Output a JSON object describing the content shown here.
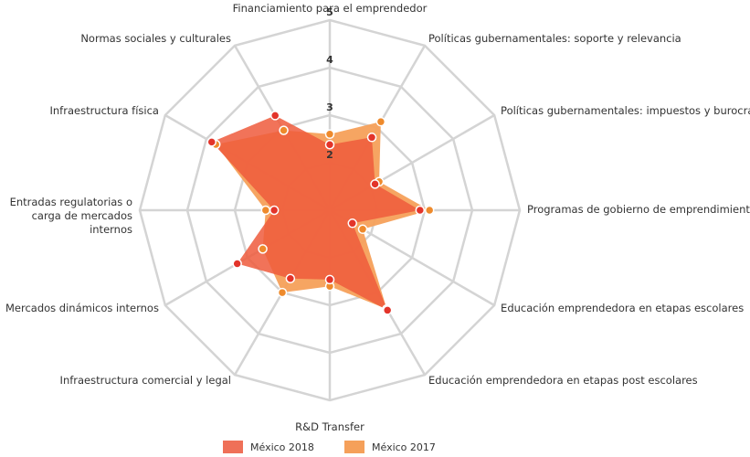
{
  "chart_data": {
    "type": "radar",
    "categories": [
      "Financiamiento para el emprendedor",
      "Políticas gubernamentales: soporte y relevancia",
      "Políticas gubernamentales: impuestos y burocracia",
      "Programas de gobierno de emprendimiento",
      "Educación emprendedora en etapas escolares",
      "Educación emprendedora en etapas post escolares",
      "R&D Transfer",
      "Infraestructura comercial y legal",
      "Mercados dinámicos internos",
      "Entradas regulatorias o carga de mercados internos",
      "Infraestructura física",
      "Normas sociales y culturales"
    ],
    "series": [
      {
        "name": "México 2017",
        "color": "#f5a05a",
        "values": [
          2.6,
          3.15,
          2.2,
          3.1,
          1.8,
          3.4,
          2.6,
          3.0,
          2.63,
          2.35,
          3.77,
          2.94
        ]
      },
      {
        "name": "México 2018",
        "color": "#ef5a3c",
        "values": [
          2.38,
          2.77,
          2.1,
          2.9,
          1.55,
          3.43,
          2.46,
          2.66,
          3.25,
          2.17,
          3.87,
          3.3
        ]
      }
    ],
    "rlim": [
      1,
      5
    ],
    "rticks": [
      2,
      3,
      4,
      5
    ],
    "grid": true,
    "legend": "bottom"
  }
}
